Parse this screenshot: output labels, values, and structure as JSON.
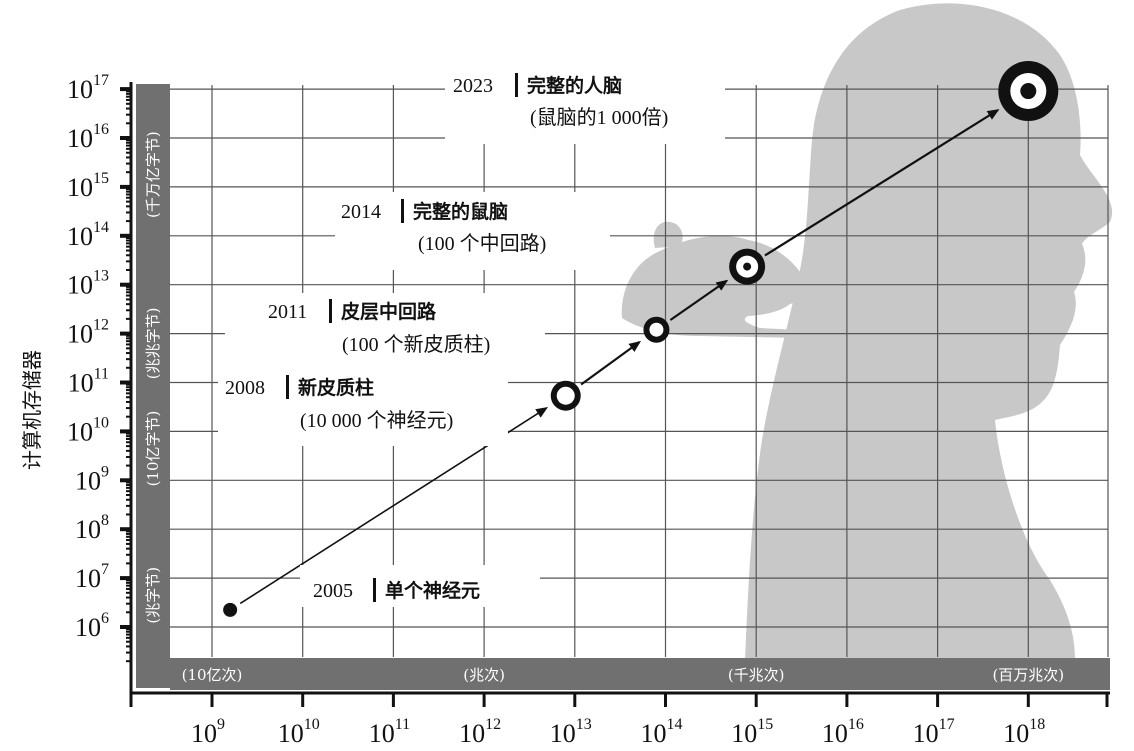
{
  "chart_data": {
    "type": "scatter",
    "xscale": "log",
    "yscale": "log",
    "ylabel": "计算机存储器",
    "xlabel": "",
    "x_tick_exponents": [
      9,
      10,
      11,
      12,
      13,
      14,
      15,
      16,
      17,
      18
    ],
    "y_tick_exponents": [
      6,
      7,
      8,
      9,
      10,
      11,
      12,
      13,
      14,
      15,
      16,
      17
    ],
    "x_bands": [
      {
        "label": "(10亿次)",
        "exp": 9
      },
      {
        "label": "(兆次)",
        "exp": 12
      },
      {
        "label": "(千兆次)",
        "exp": 15
      },
      {
        "label": "(百万兆次)",
        "exp": 18
      }
    ],
    "y_bands": [
      {
        "label": "(兆字节)",
        "from_exp": 5.7,
        "to_exp": 7.6
      },
      {
        "label": "(10亿字节)",
        "from_exp": 8.5,
        "to_exp": 10.8
      },
      {
        "label": "(兆兆字节)",
        "from_exp": 10.8,
        "to_exp": 12.8
      },
      {
        "label": "(千万亿字节)",
        "from_exp": 13.6,
        "to_exp": 16.9
      }
    ],
    "points": [
      {
        "year": "2005",
        "title": "单个神经元",
        "subtitle": "",
        "x_exp": 9.2,
        "y_exp": 6.35
      },
      {
        "year": "2008",
        "title": "新皮质柱",
        "subtitle": "(10 000 个神经元)",
        "x_exp": 12.9,
        "y_exp": 10.73
      },
      {
        "year": "2011",
        "title": "皮层中回路",
        "subtitle": "(100 个新皮质柱)",
        "x_exp": 13.9,
        "y_exp": 12.08
      },
      {
        "year": "2014",
        "title": "完整的鼠脑",
        "subtitle": "(100 个中回路)",
        "x_exp": 14.9,
        "y_exp": 13.37
      },
      {
        "year": "2023",
        "title": "完整的人脑",
        "subtitle": "(鼠脑的1 000倍)",
        "x_exp": 18.0,
        "y_exp": 16.96
      }
    ]
  }
}
